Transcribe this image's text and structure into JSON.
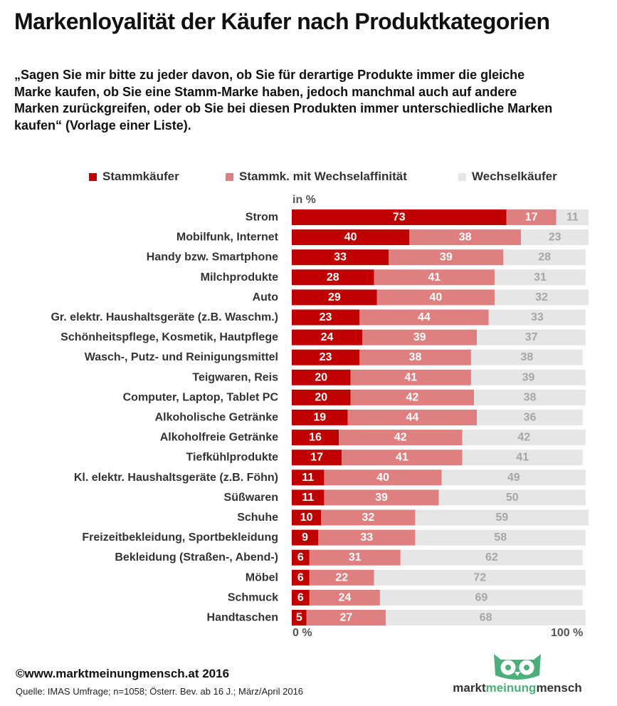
{
  "title": "Markenloyalität der Käufer nach Produktkategorien",
  "question": "„Sagen Sie mir bitte zu jeder davon, ob Sie für derartige Produkte immer die gleiche Marke kaufen, ob Sie eine Stamm-Marke haben, jedoch manchmal auch auf andere Marken zurückgreifen, oder ob Sie bei diesen Produkten immer unterschiedliche Marken kaufen“ (Vorlage einer Liste).",
  "footer": {
    "copyright": "©www.marktmeinungmensch.at 2016",
    "source": "Quelle: IMAS Umfrage; n=1058; Österr. Bev. ab 16 J.; März/April 2016"
  },
  "logo": {
    "part1": "markt",
    "part2": "meinung",
    "part3": "mensch"
  },
  "colors": {
    "stamm": "#c00000",
    "wechselaff": "#e07f7f",
    "wechsel": "#e6e6e6",
    "wechsel_label": "#a6a6a6",
    "logo_green": "#4caf7a"
  },
  "chart_data": {
    "type": "bar",
    "orientation": "horizontal",
    "stacked": true,
    "unit_label": "in %",
    "xlim": [
      0,
      100
    ],
    "x_tick_labels": [
      "0 %",
      "100 %"
    ],
    "legend_position": "top",
    "series": [
      {
        "name": "Stammkäufer",
        "color": "#c00000",
        "values": [
          73,
          40,
          33,
          28,
          29,
          23,
          24,
          23,
          20,
          20,
          19,
          16,
          17,
          11,
          11,
          10,
          9,
          6,
          6,
          6,
          5
        ]
      },
      {
        "name": "Stammk. mit Wechselaffinität",
        "color": "#e07f7f",
        "values": [
          17,
          38,
          39,
          41,
          40,
          44,
          39,
          38,
          41,
          42,
          44,
          42,
          41,
          40,
          39,
          32,
          33,
          31,
          22,
          24,
          27
        ]
      },
      {
        "name": "Wechselkäufer",
        "color": "#e6e6e6",
        "values": [
          11,
          23,
          28,
          31,
          32,
          33,
          37,
          38,
          39,
          38,
          36,
          42,
          41,
          49,
          50,
          59,
          58,
          62,
          72,
          69,
          68
        ]
      }
    ],
    "categories": [
      "Strom",
      "Mobilfunk, Internet",
      "Handy bzw. Smartphone",
      "Milchprodukte",
      "Auto",
      "Gr. elektr. Haushaltsgeräte (z.B. Waschm.)",
      "Schönheitspflege, Kosmetik, Hautpflege",
      "Wasch-, Putz- und Reinigungsmittel",
      "Teigwaren, Reis",
      "Computer, Laptop, Tablet PC",
      "Alkoholische Getränke",
      "Alkoholfreie Getränke",
      "Tiefkühlprodukte",
      "Kl. elektr. Haushaltsgeräte (z.B. Föhn)",
      "Süßwaren",
      "Schuhe",
      "Freizeitbekleidung, Sportbekleidung",
      "Bekleidung (Straßen-, Abend-)",
      "Möbel",
      "Schmuck",
      "Handtaschen"
    ]
  }
}
